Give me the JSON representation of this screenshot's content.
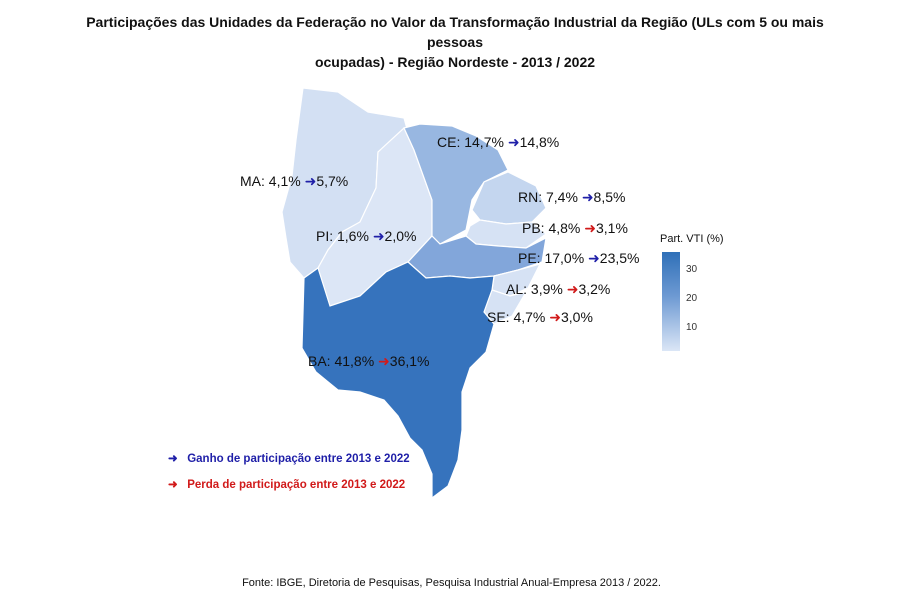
{
  "title_line1": "Participações das Unidades da Federação no Valor da Transformação Industrial da Região (ULs com 5 ou mais pessoas",
  "title_line2": "ocupadas) - Região Nordeste - 2013 / 2022",
  "colors": {
    "gain": "#1f1fa8",
    "loss": "#d11a1a"
  },
  "states": [
    {
      "id": "MA",
      "label": "MA: 4,1%",
      "v2022": "5,7%",
      "trend": "gain",
      "value": 5.7,
      "color": "#d3e0f3"
    },
    {
      "id": "PI",
      "label": "PI: 1,6%",
      "v2022": "2,0%",
      "trend": "gain",
      "value": 2.0,
      "color": "#dce6f6"
    },
    {
      "id": "CE",
      "label": "CE: 14,7%",
      "v2022": "14,8%",
      "trend": "gain",
      "value": 14.8,
      "color": "#98b7e1"
    },
    {
      "id": "RN",
      "label": "RN: 7,4%",
      "v2022": "8,5%",
      "trend": "gain",
      "value": 8.5,
      "color": "#c4d6ef"
    },
    {
      "id": "PB",
      "label": "PB: 4,8%",
      "v2022": "3,1%",
      "trend": "loss",
      "value": 3.1,
      "color": "#d6e2f4"
    },
    {
      "id": "PE",
      "label": "PE: 17,0%",
      "v2022": "23,5%",
      "trend": "gain",
      "value": 23.5,
      "color": "#82a6da"
    },
    {
      "id": "AL",
      "label": "AL: 3,9%",
      "v2022": "3,2%",
      "trend": "loss",
      "value": 3.2,
      "color": "#d6e2f4"
    },
    {
      "id": "SE",
      "label": "SE: 4,7%",
      "v2022": "3,0%",
      "trend": "loss",
      "value": 3.0,
      "color": "#d6e2f4"
    },
    {
      "id": "BA",
      "label": "BA: 41,8%",
      "v2022": "36,1%",
      "trend": "loss",
      "value": 36.1,
      "color": "#3673bd"
    }
  ],
  "scale": {
    "title": "Part. VTI (%)",
    "ticks": [
      "30",
      "20",
      "10"
    ]
  },
  "legend": {
    "gain_arrow": "➜",
    "gain_text": "Ganho de participação entre 2013 e 2022",
    "loss_arrow": "➜",
    "loss_text": "Perda de participação entre 2013 e 2022"
  },
  "source": "Fonte: IBGE, Diretoria de Pesquisas, Pesquisa Industrial Anual-Empresa 2013 / 2022."
}
